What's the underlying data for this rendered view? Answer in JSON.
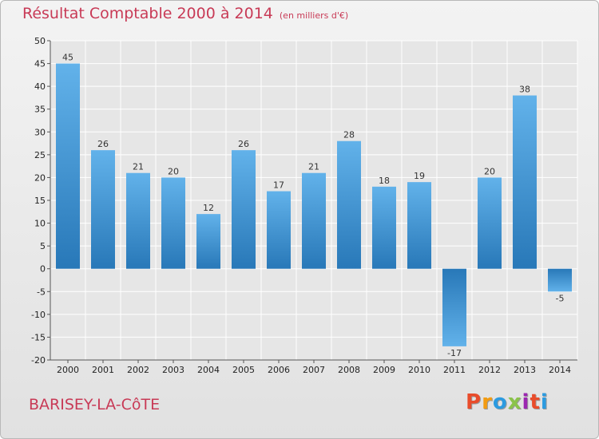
{
  "chart_title": "Résultat Comptable 2000 à 2014",
  "chart_subtitle": "(en milliers d'€)",
  "commune": "BARISEY-LA-CôTE",
  "logo": {
    "letters": [
      "P",
      "r",
      "o",
      "x",
      "i",
      "t",
      "i"
    ],
    "colors": [
      "#e94c2b",
      "#f39c12",
      "#2c9be0",
      "#8bc34a",
      "#9c27b0",
      "#e94c2b",
      "#2c9be0"
    ]
  },
  "colors": {
    "bar_light": "#6bb8ec",
    "bar_dark": "#2a7fc0",
    "title": "#c83a56",
    "grid": "#ffffff"
  },
  "chart_data": {
    "type": "bar",
    "title": "Résultat Comptable 2000 à 2014",
    "subtitle": "(en milliers d'€)",
    "categories": [
      "2000",
      "2001",
      "2002",
      "2003",
      "2004",
      "2005",
      "2006",
      "2007",
      "2008",
      "2009",
      "2010",
      "2011",
      "2012",
      "2013",
      "2014"
    ],
    "values": [
      45,
      26,
      21,
      20,
      12,
      26,
      17,
      21,
      28,
      18,
      19,
      -17,
      20,
      38,
      -5
    ],
    "ylim": [
      -20,
      50
    ],
    "yticks": [
      -20,
      -15,
      -10,
      -5,
      0,
      5,
      10,
      15,
      20,
      25,
      30,
      35,
      40,
      45,
      50
    ],
    "xlabel": "",
    "ylabel": "",
    "grid": true
  }
}
